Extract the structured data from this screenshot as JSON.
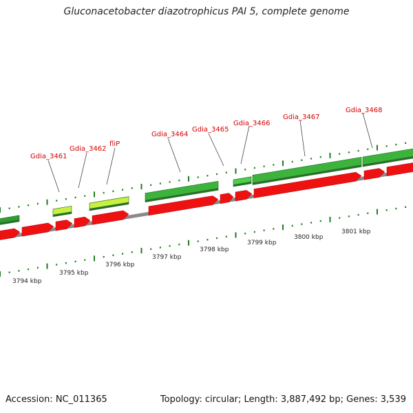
{
  "title": "Gluconacetobacter diazotrophicus PAI 5, complete genome",
  "footer": {
    "accession": "Accession: NC_011365",
    "summary": "Topology: circular; Length: 3,887,492 bp; Genes: 3,539"
  },
  "colors": {
    "reverse_strand": "#ee1111",
    "forward_strand": "#2f9e2f",
    "forward_light": "#c8f040",
    "backbone": "#8a8a8a",
    "tick": "#1f7a1f",
    "label": "#d40000"
  },
  "genes": [
    {
      "name": "Gdia_3461"
    },
    {
      "name": "Gdia_3462"
    },
    {
      "name": "fliP"
    },
    {
      "name": "Gdia_3464"
    },
    {
      "name": "Gdia_3465"
    },
    {
      "name": "Gdia_3466"
    },
    {
      "name": "Gdia_3467"
    },
    {
      "name": "Gdia_3468"
    }
  ],
  "scale": [
    {
      "label": "3794 kbp"
    },
    {
      "label": "3795 kbp"
    },
    {
      "label": "3796 kbp"
    },
    {
      "label": "3797 kbp"
    },
    {
      "label": "3798 kbp"
    },
    {
      "label": "3799 kbp"
    },
    {
      "label": "3800 kbp"
    },
    {
      "label": "3801 kbp"
    }
  ]
}
